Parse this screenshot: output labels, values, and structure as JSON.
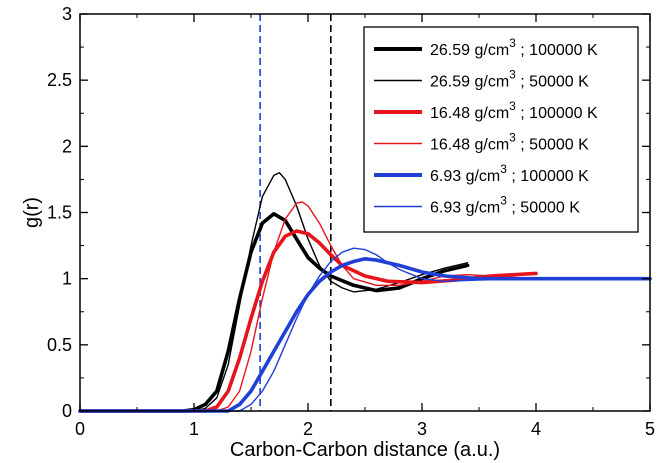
{
  "chart_data": {
    "type": "line",
    "xlabel": "Carbon-Carbon distance (a.u.)",
    "ylabel": "g(r)",
    "xlim": [
      0,
      5
    ],
    "ylim": [
      0,
      3
    ],
    "x_ticks": [
      "0",
      "1",
      "2",
      "3",
      "4",
      "5"
    ],
    "y_ticks": [
      "0",
      "0.5",
      "1",
      "1.5",
      "2",
      "2.5",
      "3"
    ],
    "grid": false,
    "legend_position": "top-right",
    "vertical_lines": [
      {
        "x": 1.58,
        "color": "#1f3fd6",
        "style": "dashed"
      },
      {
        "x": 2.2,
        "color": "#000000",
        "style": "dashed"
      }
    ],
    "series": [
      {
        "name": "26.59 g/cm³ ; 100000 K",
        "legend": {
          "main": "26.59 g/cm",
          "sup": "3",
          "rest": " ; 100000 K"
        },
        "color": "#000000",
        "weight": "thick",
        "x": [
          0,
          0.9,
          1.0,
          1.1,
          1.2,
          1.3,
          1.4,
          1.5,
          1.6,
          1.7,
          1.8,
          1.9,
          2.0,
          2.1,
          2.2,
          2.4,
          2.6,
          2.8,
          3.0,
          3.2,
          3.4
        ],
        "y": [
          0,
          0,
          0.01,
          0.05,
          0.15,
          0.45,
          0.85,
          1.2,
          1.42,
          1.49,
          1.44,
          1.3,
          1.16,
          1.08,
          1.02,
          0.95,
          0.91,
          0.93,
          1.0,
          1.06,
          1.1
        ]
      },
      {
        "name": "26.59 g/cm³ ; 50000 K",
        "legend": {
          "main": "26.59 g/cm",
          "sup": "3",
          "rest": " ; 50000 K"
        },
        "color": "#000000",
        "weight": "thin",
        "x": [
          0,
          1.0,
          1.1,
          1.2,
          1.3,
          1.4,
          1.5,
          1.6,
          1.7,
          1.75,
          1.8,
          1.9,
          2.0,
          2.1,
          2.2,
          2.3,
          2.4,
          2.6,
          2.8,
          3.0,
          3.2,
          3.4
        ],
        "y": [
          0,
          0,
          0.02,
          0.1,
          0.35,
          0.8,
          1.25,
          1.62,
          1.78,
          1.8,
          1.75,
          1.55,
          1.3,
          1.1,
          0.98,
          0.93,
          0.9,
          0.92,
          0.97,
          1.03,
          1.08,
          1.12
        ]
      },
      {
        "name": "16.48 g/cm³ ; 100000 K",
        "legend": {
          "main": "16.48 g/cm",
          "sup": "3",
          "rest": " ; 100000 K"
        },
        "color": "#e8141c",
        "weight": "thick",
        "x": [
          0,
          1.1,
          1.2,
          1.3,
          1.4,
          1.5,
          1.6,
          1.7,
          1.8,
          1.9,
          2.0,
          2.1,
          2.2,
          2.3,
          2.5,
          2.7,
          3.0,
          3.3,
          3.6,
          4.0
        ],
        "y": [
          0,
          0,
          0.03,
          0.15,
          0.4,
          0.7,
          0.98,
          1.2,
          1.32,
          1.36,
          1.34,
          1.27,
          1.18,
          1.1,
          1.02,
          0.98,
          0.97,
          0.99,
          1.02,
          1.04
        ]
      },
      {
        "name": "16.48 g/cm³ ; 50000 K",
        "legend": {
          "main": "16.48 g/cm",
          "sup": "3",
          "rest": " ; 50000 K"
        },
        "color": "#e8141c",
        "weight": "thin",
        "x": [
          0,
          1.2,
          1.3,
          1.4,
          1.5,
          1.6,
          1.7,
          1.8,
          1.9,
          1.95,
          2.0,
          2.1,
          2.2,
          2.3,
          2.4,
          2.6,
          2.8,
          3.0,
          3.2,
          3.4,
          3.6,
          4.0
        ],
        "y": [
          0,
          0,
          0.03,
          0.15,
          0.45,
          0.85,
          1.2,
          1.45,
          1.57,
          1.58,
          1.55,
          1.42,
          1.25,
          1.1,
          1.0,
          0.95,
          0.95,
          0.98,
          1.02,
          1.03,
          1.02,
          1.0
        ]
      },
      {
        "name": "6.93 g/cm³ ; 100000 K",
        "legend": {
          "main": "6.93 g/cm",
          "sup": "3",
          "rest": " ; 100000 K"
        },
        "color": "#1f3fd6",
        "weight": "thick",
        "x": [
          0,
          1.3,
          1.4,
          1.5,
          1.6,
          1.7,
          1.8,
          1.9,
          2.0,
          2.1,
          2.2,
          2.3,
          2.4,
          2.5,
          2.6,
          2.8,
          3.0,
          3.2,
          3.5,
          4.0,
          4.5,
          5.0
        ],
        "y": [
          0,
          0,
          0.05,
          0.15,
          0.3,
          0.45,
          0.6,
          0.75,
          0.88,
          0.98,
          1.05,
          1.1,
          1.13,
          1.15,
          1.14,
          1.1,
          1.05,
          1.02,
          1.0,
          1.0,
          1.0,
          1.0
        ]
      },
      {
        "name": "6.93 g/cm³ ; 50000 K",
        "legend": {
          "main": "6.93 g/cm",
          "sup": "3",
          "rest": " ; 50000 K"
        },
        "color": "#1f3fd6",
        "weight": "thin",
        "x": [
          0,
          1.4,
          1.5,
          1.6,
          1.7,
          1.8,
          1.9,
          2.0,
          2.1,
          2.2,
          2.3,
          2.4,
          2.5,
          2.6,
          2.7,
          2.8,
          3.0,
          3.2,
          3.5,
          4.0,
          4.5,
          5.0
        ],
        "y": [
          0,
          0,
          0.05,
          0.15,
          0.3,
          0.5,
          0.7,
          0.88,
          1.02,
          1.13,
          1.2,
          1.23,
          1.22,
          1.18,
          1.12,
          1.07,
          1.0,
          0.98,
          0.99,
          1.0,
          1.0,
          1.0
        ]
      }
    ]
  }
}
